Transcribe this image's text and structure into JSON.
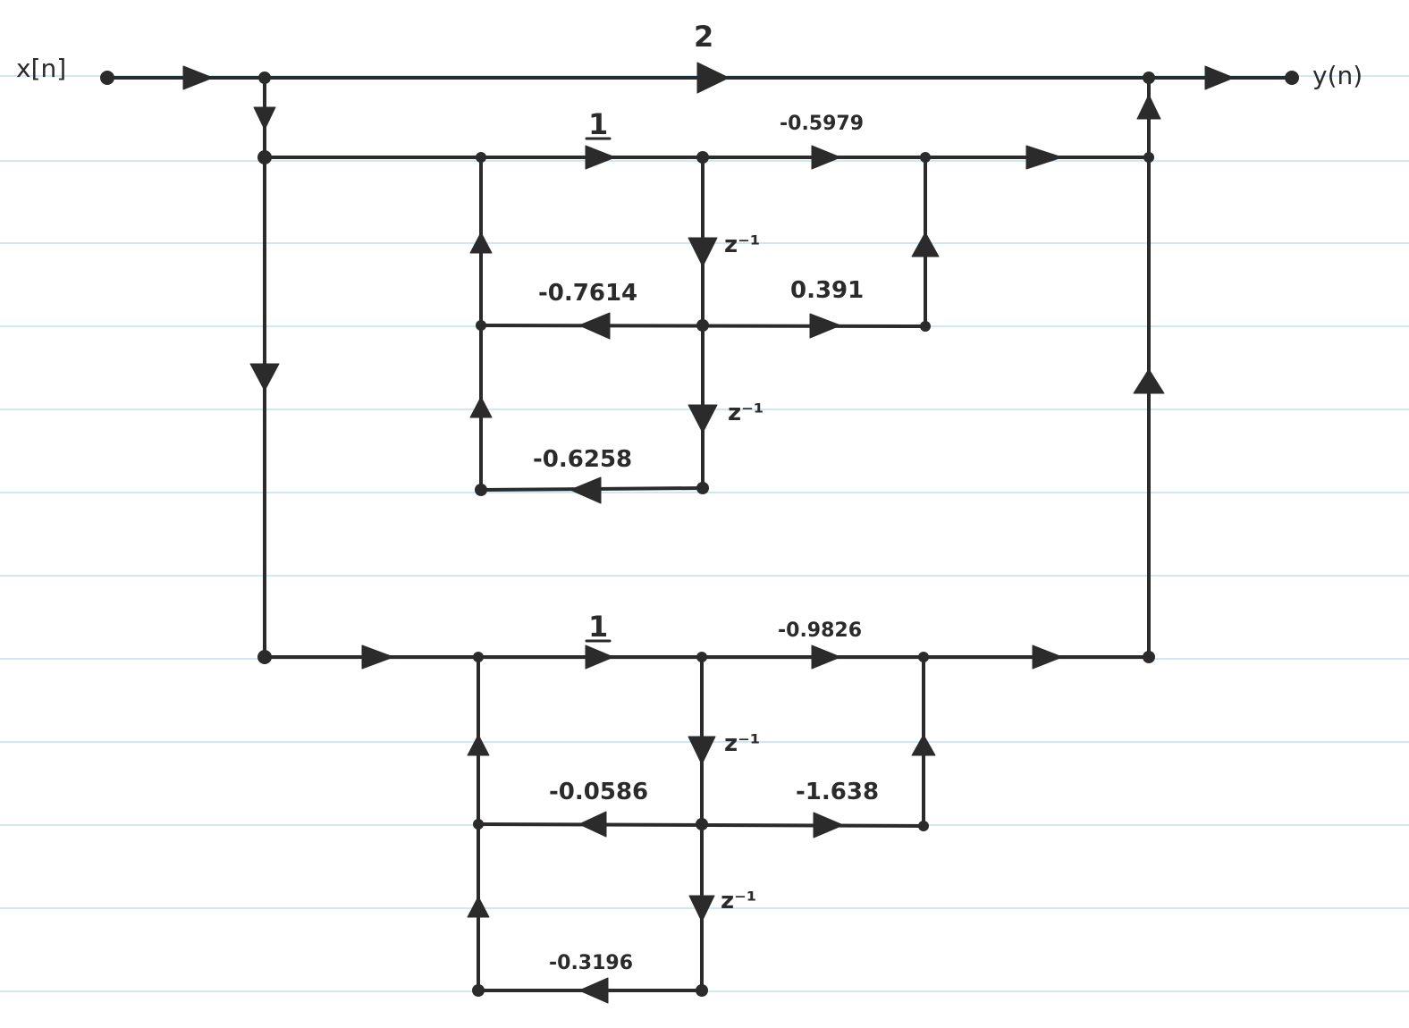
{
  "input_label": "x[n]",
  "output_label": "y(n)",
  "direct_gain": "2",
  "section1": {
    "forward_gain": "1",
    "b1": "-0.5979",
    "a1": "-0.7614",
    "b2": "0.391",
    "a2": "-0.6258",
    "delay1": "z⁻¹",
    "delay2": "z⁻¹"
  },
  "section2": {
    "forward_gain": "1",
    "b1": "-0.9826",
    "a1": "-0.0586",
    "b2": "-1.638",
    "a2": "-0.3196",
    "delay1": "z⁻¹",
    "delay2": "z⁻¹"
  },
  "colors": {
    "ink": "#2b2b2b",
    "paper_rule": "#cfe8f5"
  }
}
